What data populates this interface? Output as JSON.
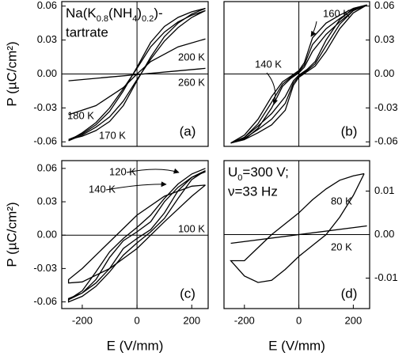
{
  "chart_data": [
    {
      "type": "line",
      "panel_label": "(a)",
      "label_parts": [
        "Na(K",
        "0.8",
        "(NH",
        "4",
        ")",
        "0.2",
        ")-"
      ],
      "label_line2": "tartrate",
      "ylabel": "P (µC/cm²)",
      "color": "#000000",
      "xlim": [
        -275,
        260
      ],
      "ylim": [
        -0.064,
        0.064
      ],
      "yticks": [
        -0.06,
        -0.03,
        {
          "value": 0,
          "label": "0.00"
        },
        0.03,
        0.06
      ],
      "series": [
        {
          "name": "170 K",
          "x": [
            250,
            200,
            150,
            100,
            50,
            0,
            -50,
            -100,
            -150,
            -200,
            -250,
            -250,
            -200,
            -150,
            -100,
            -50,
            0,
            50,
            100,
            150,
            200,
            250
          ],
          "values": [
            0.058,
            0.055,
            0.05,
            0.042,
            0.028,
            0.006,
            -0.015,
            -0.033,
            -0.045,
            -0.053,
            -0.058,
            -0.058,
            -0.055,
            -0.05,
            -0.042,
            -0.028,
            -0.006,
            0.015,
            0.033,
            0.045,
            0.053,
            0.058
          ]
        },
        {
          "name": "180 K",
          "x": [
            250,
            200,
            150,
            100,
            50,
            0,
            -50,
            -100,
            -150,
            -200,
            -250,
            -250,
            -200,
            -150,
            -100,
            -50,
            0,
            50,
            100,
            150,
            200,
            250
          ],
          "values": [
            0.056,
            0.052,
            0.046,
            0.037,
            0.024,
            0.005,
            -0.013,
            -0.03,
            -0.043,
            -0.052,
            -0.059,
            -0.059,
            -0.054,
            -0.047,
            -0.038,
            -0.024,
            -0.005,
            0.013,
            0.029,
            0.041,
            0.05,
            0.056
          ]
        },
        {
          "name": "200 K",
          "x": [
            -250,
            -150,
            -50,
            0,
            50,
            150,
            250
          ],
          "values": [
            -0.036,
            -0.028,
            -0.012,
            0,
            0.011,
            0.024,
            0.031
          ]
        },
        {
          "name": "260 K",
          "x": [
            -250,
            250
          ],
          "values": [
            -0.006,
            0.005
          ]
        }
      ]
    },
    {
      "type": "line",
      "panel_label": "(b)",
      "color": "#000000",
      "xlim": [
        -275,
        260
      ],
      "ylim": [
        -0.064,
        0.064
      ],
      "yticks": [
        -0.06,
        -0.03,
        {
          "value": 0,
          "label": "0.00"
        },
        0.03,
        0.06
      ],
      "series": [
        {
          "name": "140 K",
          "x": [
            250,
            200,
            150,
            100,
            50,
            20,
            0,
            -30,
            -60,
            -100,
            -150,
            -200,
            -250,
            -250,
            -200,
            -150,
            -100,
            -50,
            -20,
            0,
            30,
            60,
            100,
            150,
            200,
            250
          ],
          "values": [
            0.061,
            0.058,
            0.052,
            0.045,
            0.032,
            0.01,
            0.003,
            -0.002,
            -0.007,
            -0.02,
            -0.04,
            -0.054,
            -0.061,
            -0.061,
            -0.058,
            -0.052,
            -0.045,
            -0.032,
            -0.01,
            -0.003,
            0.002,
            0.007,
            0.02,
            0.04,
            0.054,
            0.061
          ]
        },
        {
          "x": [
            250,
            200,
            150,
            100,
            50,
            20,
            0,
            -30,
            -60,
            -100,
            -150,
            -200,
            -250,
            -250,
            -200,
            -150,
            -100,
            -50,
            -20,
            0,
            30,
            60,
            100,
            150,
            200,
            250
          ],
          "values": [
            0.061,
            0.057,
            0.049,
            0.04,
            0.026,
            0.008,
            0.002,
            -0.003,
            -0.009,
            -0.025,
            -0.044,
            -0.056,
            -0.061,
            -0.061,
            -0.057,
            -0.049,
            -0.04,
            -0.026,
            -0.008,
            -0.002,
            0.003,
            0.009,
            0.025,
            0.044,
            0.056,
            0.061
          ]
        },
        {
          "name": "160 K",
          "x": [
            250,
            200,
            150,
            100,
            50,
            20,
            0,
            -30,
            -60,
            -100,
            -150,
            -200,
            -250,
            -250,
            -200,
            -150,
            -100,
            -50,
            -20,
            0,
            30,
            60,
            100,
            150,
            200,
            250
          ],
          "values": [
            0.061,
            0.056,
            0.046,
            0.035,
            0.02,
            0.006,
            0.001,
            -0.004,
            -0.011,
            -0.03,
            -0.048,
            -0.058,
            -0.061,
            -0.061,
            -0.056,
            -0.046,
            -0.035,
            -0.02,
            -0.006,
            -0.001,
            0.004,
            0.011,
            0.03,
            0.048,
            0.058,
            0.061
          ]
        }
      ]
    },
    {
      "type": "line",
      "panel_label": "(c)",
      "ylabel": "P (µC/cm²)",
      "xlabel": "E (V/mm)",
      "color": "#000000",
      "xlim": [
        -275,
        260
      ],
      "ylim": [
        -0.066,
        0.067
      ],
      "xticks": [
        -200,
        0,
        200
      ],
      "yticks": [
        -0.06,
        -0.03,
        {
          "value": 0,
          "label": "0.00"
        },
        0.03,
        0.06
      ],
      "series": [
        {
          "name": "120 K",
          "x": [
            250,
            200,
            150,
            100,
            50,
            0,
            -50,
            -100,
            -150,
            -200,
            -250,
            -250,
            -200,
            -150,
            -100,
            -50,
            0,
            50,
            100,
            150,
            200,
            250
          ],
          "values": [
            0.06,
            0.055,
            0.046,
            0.033,
            0.018,
            0.007,
            -0.003,
            -0.015,
            -0.033,
            -0.05,
            -0.058,
            -0.06,
            -0.055,
            -0.046,
            -0.033,
            -0.018,
            -0.007,
            0.003,
            0.015,
            0.033,
            0.05,
            0.058
          ]
        },
        {
          "name": "140 K",
          "x": [
            250,
            200,
            150,
            100,
            50,
            0,
            -50,
            -100,
            -150,
            -200,
            -250,
            -250,
            -200,
            -150,
            -100,
            -50,
            0,
            50,
            100,
            150,
            200,
            250
          ],
          "values": [
            0.058,
            0.052,
            0.043,
            0.03,
            0.012,
            0.003,
            -0.005,
            -0.02,
            -0.04,
            -0.052,
            -0.057,
            -0.058,
            -0.052,
            -0.043,
            -0.03,
            -0.012,
            -0.003,
            0.005,
            0.02,
            0.04,
            0.052,
            0.057
          ]
        },
        {
          "name": "100 K",
          "x": [
            250,
            200,
            100,
            0,
            -100,
            -200,
            -250,
            -250,
            -200,
            -100,
            0,
            100,
            200,
            250
          ],
          "values": [
            0.045,
            0.044,
            0.035,
            0.018,
            -0.006,
            -0.03,
            -0.04,
            -0.043,
            -0.042,
            -0.03,
            -0.012,
            0.012,
            0.035,
            0.045
          ]
        }
      ]
    },
    {
      "type": "line",
      "panel_label": "(d)",
      "label_parts": [
        "U",
        "0",
        "=300 V;"
      ],
      "label_line2": "ν=33 Hz",
      "xlabel": "E (V/mm)",
      "color": "#000000",
      "xlim": [
        -275,
        260
      ],
      "ylim": [
        -0.017,
        0.017
      ],
      "xticks": [
        -200,
        0,
        200
      ],
      "yticks": [
        -0.01,
        {
          "value": 0,
          "label": "0.00"
        },
        0.01
      ],
      "series": [
        {
          "name": "80 K",
          "x": [
            240,
            200,
            150,
            100,
            50,
            0,
            -50,
            -100,
            -150,
            -200,
            -250,
            -200,
            -150,
            -100,
            -50,
            0,
            50,
            100,
            150,
            200,
            240
          ],
          "values": [
            0.014,
            0.0135,
            0.0125,
            0.0105,
            0.008,
            0.005,
            0.0025,
            0,
            -0.003,
            -0.006,
            -0.006,
            -0.0095,
            -0.011,
            -0.0105,
            -0.008,
            -0.005,
            -0.0025,
            0,
            0.004,
            0.009,
            0.014
          ]
        },
        {
          "name": "20 K",
          "x": [
            -250,
            250
          ],
          "values": [
            -0.002,
            0.002
          ]
        }
      ]
    }
  ]
}
